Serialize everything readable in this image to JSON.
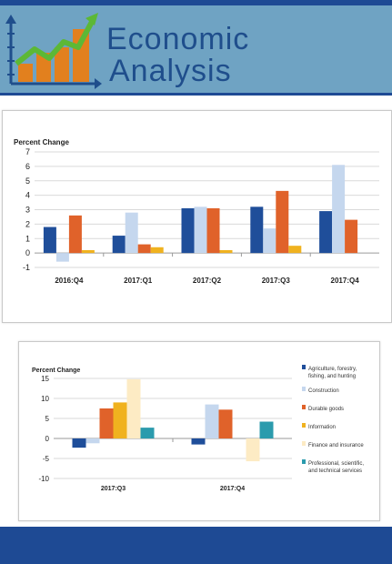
{
  "brand": {
    "line1": "Economic",
    "line2": "Analysis"
  },
  "colors": {
    "header_bg": "#6fa3c3",
    "navy": "#1e4a94",
    "brand_text": "#1f4e8c",
    "logo_green": "#5cb836",
    "logo_orange": "#e2801e"
  },
  "chart_data": [
    {
      "type": "bar",
      "ylabel": "Percent Change",
      "ylim": [
        -1,
        7
      ],
      "yticks": [
        -1,
        0,
        1,
        2,
        3,
        4,
        5,
        6,
        7
      ],
      "grid": true,
      "legend": "none",
      "categories": [
        "2016:Q4",
        "2017:Q1",
        "2017:Q2",
        "2017:Q3",
        "2017:Q4"
      ],
      "series": [
        {
          "color": "#1f4e9a",
          "values": [
            1.8,
            1.2,
            3.1,
            3.2,
            2.9
          ]
        },
        {
          "color": "#c5d7ee",
          "values": [
            -0.6,
            2.8,
            3.2,
            1.7,
            6.1
          ]
        },
        {
          "color": "#e0622a",
          "values": [
            2.6,
            0.6,
            3.1,
            4.3,
            2.3
          ]
        },
        {
          "color": "#f0b21f",
          "values": [
            0.2,
            0.4,
            0.2,
            0.5,
            null
          ]
        }
      ]
    },
    {
      "type": "bar",
      "ylabel": "Percent Change",
      "ylim": [
        -10,
        15
      ],
      "yticks": [
        -10,
        -5,
        0,
        5,
        10,
        15
      ],
      "grid": true,
      "legend": "right",
      "categories": [
        "2017:Q3",
        "2017:Q4"
      ],
      "series": [
        {
          "name": "Agriculture, forestry, fishing, and hunting",
          "legend_lines": [
            "Agriculture, forestry,",
            "fishing, and hunting"
          ],
          "color": "#1f4e9a",
          "values": [
            -2.3,
            -1.5
          ]
        },
        {
          "name": "Construction",
          "legend_lines": [
            "Construction"
          ],
          "color": "#c5d7ee",
          "values": [
            -1.2,
            8.5
          ]
        },
        {
          "name": "Durable goods",
          "legend_lines": [
            "Durable goods"
          ],
          "color": "#e0622a",
          "values": [
            7.5,
            7.2
          ]
        },
        {
          "name": "Information",
          "legend_lines": [
            "Information"
          ],
          "color": "#f0b21f",
          "values": [
            9.0,
            null
          ]
        },
        {
          "name": "Finance and insurance",
          "legend_lines": [
            "Finance and insurance"
          ],
          "color": "#fdebc4",
          "values": [
            14.8,
            -5.7
          ]
        },
        {
          "name": "Professional, scientific, and technical services",
          "legend_lines": [
            "Professional, scientific,",
            "and technical services"
          ],
          "color": "#2b9bad",
          "values": [
            2.7,
            4.2
          ]
        }
      ]
    }
  ]
}
